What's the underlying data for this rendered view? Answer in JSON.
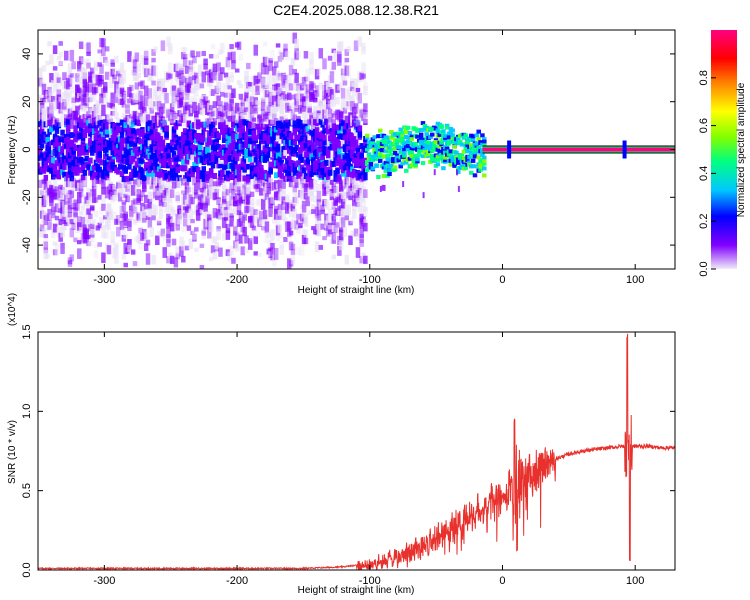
{
  "title": "C2E4.2025.088.12.38.R21",
  "chart_data": [
    {
      "type": "heatmap",
      "xlabel": "Height of straight line (km)",
      "ylabel": "Frequency (Hz)",
      "xlim": [
        -350,
        130
      ],
      "ylim": [
        -50,
        50
      ],
      "xticks": [
        -300,
        -200,
        -100,
        0,
        100
      ],
      "yticks": [
        -40,
        -20,
        0,
        20,
        40
      ],
      "colorbar": {
        "label": "Normalized spectral amplitude",
        "range": [
          0.0,
          1.0
        ],
        "ticks": [
          "0.0",
          "0.2",
          "0.4",
          "0.6",
          "0.8"
        ],
        "colors": [
          "#e8e0f4",
          "#8000ff",
          "#0000ff",
          "#00c8ff",
          "#00ff80",
          "#80ff00",
          "#ffff00",
          "#ff8000",
          "#ff0000",
          "#ff0080"
        ]
      },
      "features": {
        "noise_floor_region_km": [
          -350,
          -105
        ],
        "signal_emergence_km": -105,
        "steady_line_start_km": -15,
        "steady_line_frequency_hz": 0,
        "steady_line_amplitude": 0.95
      }
    },
    {
      "type": "line",
      "xlabel": "Height of straight line (km)",
      "ylabel": "SNR (10 * v/v)",
      "yscale_label": "(x10^4)",
      "xlim": [
        -350,
        130
      ],
      "ylim": [
        0.0,
        1.5
      ],
      "xticks": [
        -300,
        -200,
        -100,
        0,
        100
      ],
      "yticks": [
        "0.0",
        "0.5",
        "1.0",
        "1.5"
      ],
      "series": [
        {
          "color": "#e8312c",
          "x": [
            -350,
            -300,
            -250,
            -200,
            -150,
            -120,
            -100,
            -90,
            -80,
            -70,
            -60,
            -50,
            -40,
            -30,
            -20,
            -10,
            0,
            10,
            20,
            30,
            40,
            50,
            60,
            70,
            80,
            90,
            95,
            100,
            110,
            120,
            130
          ],
          "y": [
            0.01,
            0.01,
            0.01,
            0.01,
            0.01,
            0.02,
            0.04,
            0.06,
            0.09,
            0.12,
            0.16,
            0.21,
            0.26,
            0.31,
            0.36,
            0.41,
            0.46,
            0.52,
            0.6,
            0.66,
            0.7,
            0.73,
            0.75,
            0.76,
            0.77,
            0.78,
            0.78,
            0.78,
            0.78,
            0.77,
            0.77
          ]
        }
      ],
      "annotations": [
        {
          "x": 10,
          "y_peak": 0.97,
          "y_dip": 0.1
        },
        {
          "x": 95,
          "y_peak": 1.5,
          "y_dip": 0.05
        }
      ]
    }
  ]
}
